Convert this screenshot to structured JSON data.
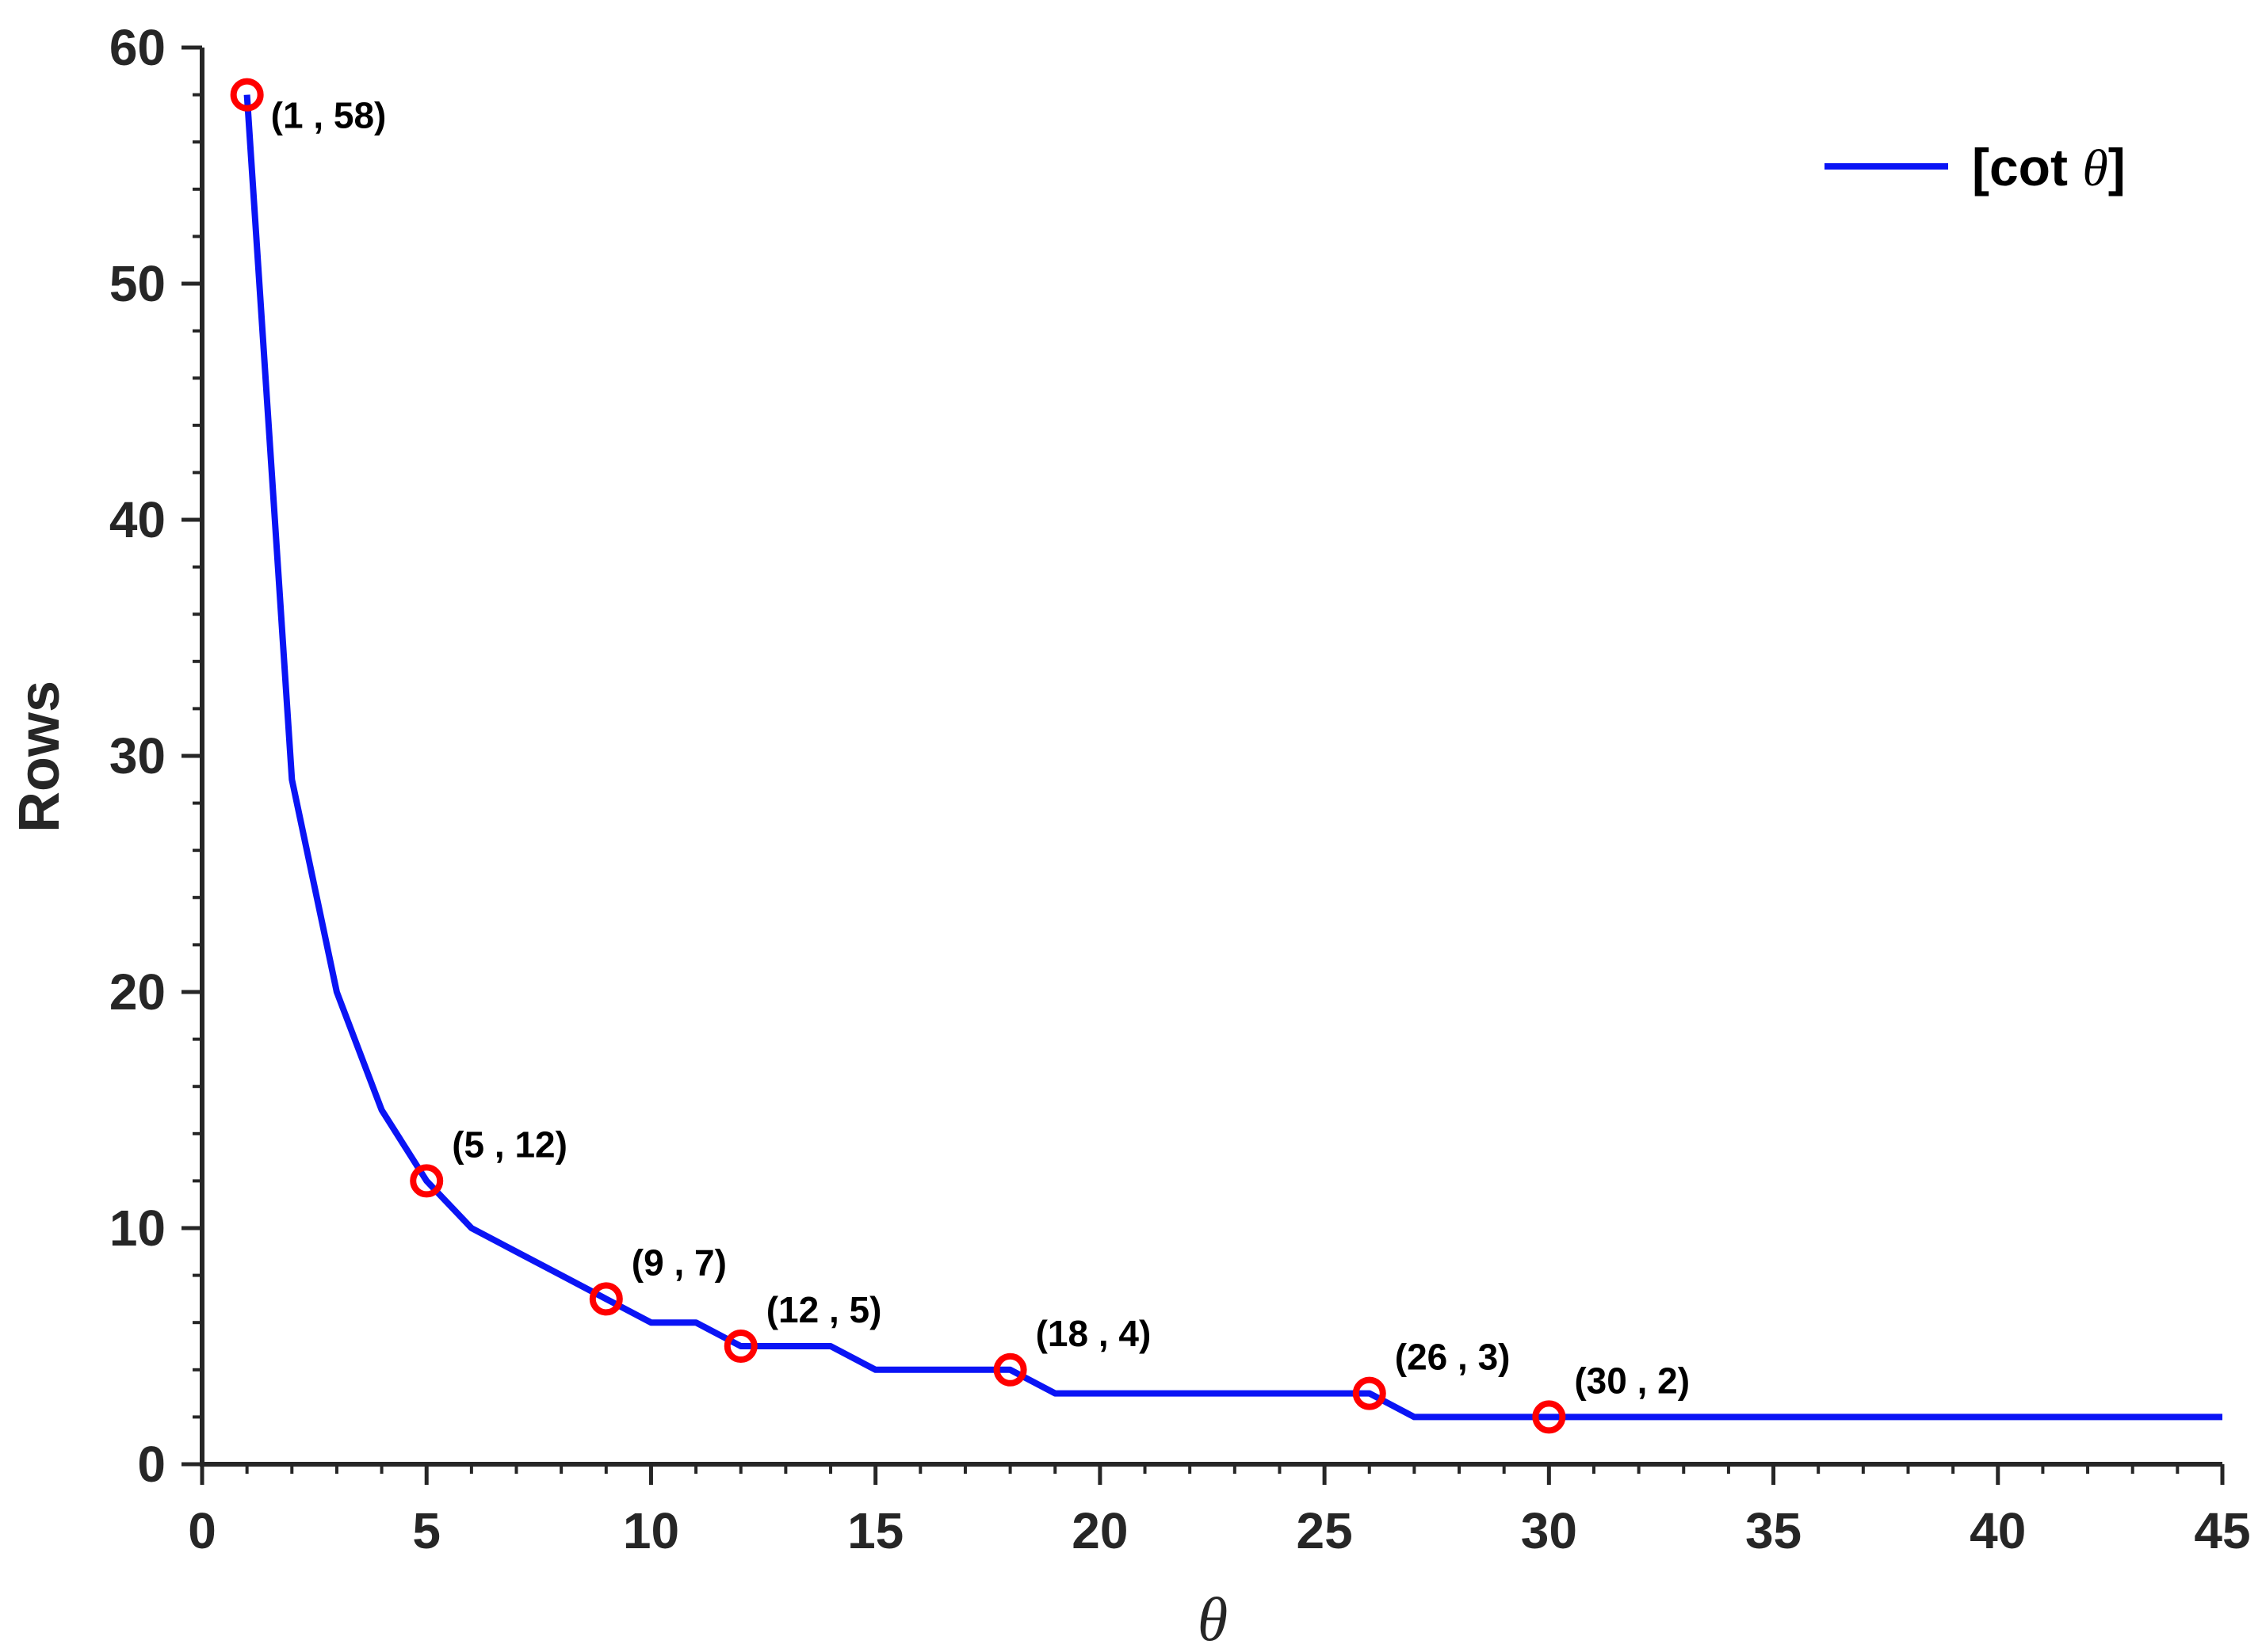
{
  "chart_data": {
    "type": "line",
    "xlabel": "θ",
    "ylabel": "Rows",
    "xlim": [
      0,
      45
    ],
    "ylim": [
      0,
      60
    ],
    "x_ticks": [
      "0",
      "5",
      "10",
      "15",
      "20",
      "25",
      "30",
      "35",
      "40",
      "45"
    ],
    "y_ticks": [
      "0",
      "10",
      "20",
      "30",
      "40",
      "50",
      "60"
    ],
    "grid": false,
    "legend_position": "top-right",
    "series": [
      {
        "name": "[cot θ]",
        "legend_prefix": "[cot ",
        "legend_symbol": "θ",
        "legend_suffix": "]",
        "color": "#0a14f5",
        "x": [
          1,
          2,
          3,
          4,
          5,
          6,
          7,
          8,
          9,
          10,
          11,
          12,
          13,
          14,
          15,
          16,
          17,
          18,
          19,
          20,
          21,
          22,
          23,
          24,
          25,
          26,
          27,
          28,
          29,
          30,
          31,
          32,
          33,
          34,
          35,
          36,
          37,
          38,
          39,
          40,
          41,
          42,
          43,
          44,
          45
        ],
        "y": [
          58,
          29,
          20,
          15,
          12,
          10,
          9,
          8,
          7,
          6,
          6,
          5,
          5,
          5,
          4,
          4,
          4,
          4,
          3,
          3,
          3,
          3,
          3,
          3,
          3,
          3,
          2,
          2,
          2,
          2,
          2,
          2,
          2,
          2,
          2,
          2,
          2,
          2,
          2,
          2,
          2,
          2,
          2,
          2,
          2
        ]
      }
    ],
    "highlighted_points": [
      {
        "x": 1,
        "y": 58,
        "label": "(1 , 58)"
      },
      {
        "x": 5,
        "y": 12,
        "label": "(5 , 12)"
      },
      {
        "x": 9,
        "y": 7,
        "label": "(9 , 7)"
      },
      {
        "x": 12,
        "y": 5,
        "label": "(12 , 5)"
      },
      {
        "x": 18,
        "y": 4,
        "label": "(18 , 4)"
      },
      {
        "x": 26,
        "y": 3,
        "label": "(26 , 3)"
      },
      {
        "x": 30,
        "y": 2,
        "label": "(30 , 2)"
      }
    ],
    "marker_color": "#ff0000"
  }
}
